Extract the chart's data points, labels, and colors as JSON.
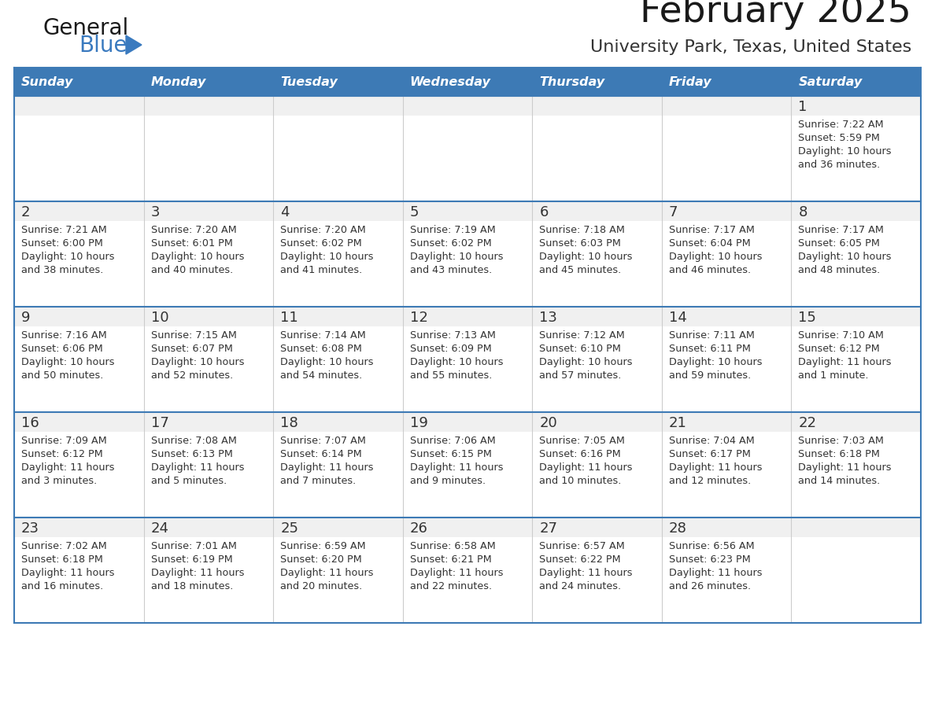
{
  "title": "February 2025",
  "subtitle": "University Park, Texas, United States",
  "days_of_week": [
    "Sunday",
    "Monday",
    "Tuesday",
    "Wednesday",
    "Thursday",
    "Friday",
    "Saturday"
  ],
  "header_bg": "#3d7ab5",
  "header_text": "#ffffff",
  "cell_bg": "#f0f0f0",
  "cell_bg_alt": "#ffffff",
  "day_number_color": "#333333",
  "text_color": "#333333",
  "border_color": "#3d7ab5",
  "inner_line_color": "#3d7ab5",
  "title_color": "#1a1a1a",
  "subtitle_color": "#333333",
  "logo_general_color": "#1a1a1a",
  "logo_blue_color": "#3a7abf",
  "logo_triangle_color": "#3a7abf",
  "calendar_data": [
    [
      {
        "day": null,
        "sunrise": null,
        "sunset": null,
        "daylight": null
      },
      {
        "day": null,
        "sunrise": null,
        "sunset": null,
        "daylight": null
      },
      {
        "day": null,
        "sunrise": null,
        "sunset": null,
        "daylight": null
      },
      {
        "day": null,
        "sunrise": null,
        "sunset": null,
        "daylight": null
      },
      {
        "day": null,
        "sunrise": null,
        "sunset": null,
        "daylight": null
      },
      {
        "day": null,
        "sunrise": null,
        "sunset": null,
        "daylight": null
      },
      {
        "day": 1,
        "sunrise": "7:22 AM",
        "sunset": "5:59 PM",
        "daylight": "10 hours and 36 minutes."
      }
    ],
    [
      {
        "day": 2,
        "sunrise": "7:21 AM",
        "sunset": "6:00 PM",
        "daylight": "10 hours and 38 minutes."
      },
      {
        "day": 3,
        "sunrise": "7:20 AM",
        "sunset": "6:01 PM",
        "daylight": "10 hours and 40 minutes."
      },
      {
        "day": 4,
        "sunrise": "7:20 AM",
        "sunset": "6:02 PM",
        "daylight": "10 hours and 41 minutes."
      },
      {
        "day": 5,
        "sunrise": "7:19 AM",
        "sunset": "6:02 PM",
        "daylight": "10 hours and 43 minutes."
      },
      {
        "day": 6,
        "sunrise": "7:18 AM",
        "sunset": "6:03 PM",
        "daylight": "10 hours and 45 minutes."
      },
      {
        "day": 7,
        "sunrise": "7:17 AM",
        "sunset": "6:04 PM",
        "daylight": "10 hours and 46 minutes."
      },
      {
        "day": 8,
        "sunrise": "7:17 AM",
        "sunset": "6:05 PM",
        "daylight": "10 hours and 48 minutes."
      }
    ],
    [
      {
        "day": 9,
        "sunrise": "7:16 AM",
        "sunset": "6:06 PM",
        "daylight": "10 hours and 50 minutes."
      },
      {
        "day": 10,
        "sunrise": "7:15 AM",
        "sunset": "6:07 PM",
        "daylight": "10 hours and 52 minutes."
      },
      {
        "day": 11,
        "sunrise": "7:14 AM",
        "sunset": "6:08 PM",
        "daylight": "10 hours and 54 minutes."
      },
      {
        "day": 12,
        "sunrise": "7:13 AM",
        "sunset": "6:09 PM",
        "daylight": "10 hours and 55 minutes."
      },
      {
        "day": 13,
        "sunrise": "7:12 AM",
        "sunset": "6:10 PM",
        "daylight": "10 hours and 57 minutes."
      },
      {
        "day": 14,
        "sunrise": "7:11 AM",
        "sunset": "6:11 PM",
        "daylight": "10 hours and 59 minutes."
      },
      {
        "day": 15,
        "sunrise": "7:10 AM",
        "sunset": "6:12 PM",
        "daylight": "11 hours and 1 minute."
      }
    ],
    [
      {
        "day": 16,
        "sunrise": "7:09 AM",
        "sunset": "6:12 PM",
        "daylight": "11 hours and 3 minutes."
      },
      {
        "day": 17,
        "sunrise": "7:08 AM",
        "sunset": "6:13 PM",
        "daylight": "11 hours and 5 minutes."
      },
      {
        "day": 18,
        "sunrise": "7:07 AM",
        "sunset": "6:14 PM",
        "daylight": "11 hours and 7 minutes."
      },
      {
        "day": 19,
        "sunrise": "7:06 AM",
        "sunset": "6:15 PM",
        "daylight": "11 hours and 9 minutes."
      },
      {
        "day": 20,
        "sunrise": "7:05 AM",
        "sunset": "6:16 PM",
        "daylight": "11 hours and 10 minutes."
      },
      {
        "day": 21,
        "sunrise": "7:04 AM",
        "sunset": "6:17 PM",
        "daylight": "11 hours and 12 minutes."
      },
      {
        "day": 22,
        "sunrise": "7:03 AM",
        "sunset": "6:18 PM",
        "daylight": "11 hours and 14 minutes."
      }
    ],
    [
      {
        "day": 23,
        "sunrise": "7:02 AM",
        "sunset": "6:18 PM",
        "daylight": "11 hours and 16 minutes."
      },
      {
        "day": 24,
        "sunrise": "7:01 AM",
        "sunset": "6:19 PM",
        "daylight": "11 hours and 18 minutes."
      },
      {
        "day": 25,
        "sunrise": "6:59 AM",
        "sunset": "6:20 PM",
        "daylight": "11 hours and 20 minutes."
      },
      {
        "day": 26,
        "sunrise": "6:58 AM",
        "sunset": "6:21 PM",
        "daylight": "11 hours and 22 minutes."
      },
      {
        "day": 27,
        "sunrise": "6:57 AM",
        "sunset": "6:22 PM",
        "daylight": "11 hours and 24 minutes."
      },
      {
        "day": 28,
        "sunrise": "6:56 AM",
        "sunset": "6:23 PM",
        "daylight": "11 hours and 26 minutes."
      },
      {
        "day": null,
        "sunrise": null,
        "sunset": null,
        "daylight": null
      }
    ]
  ]
}
